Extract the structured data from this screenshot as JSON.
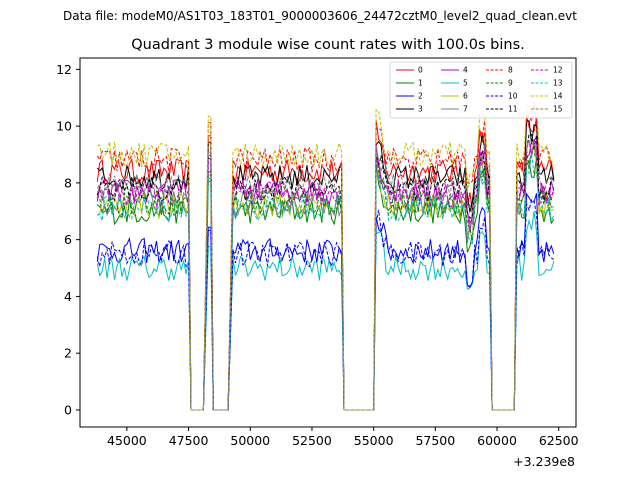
{
  "header": {
    "suptitle": "Data file: modeM0/AS1T03_183T01_9000003606_24472cztM0_level2_quad_clean.evt"
  },
  "chart_data": {
    "type": "line",
    "title": "Quadrant 3 module wise count rates with 100.0s bins.",
    "xlabel": "",
    "ylabel": "",
    "x_offset_label": "+3.239e8",
    "xlim": [
      43100,
      63200
    ],
    "ylim": [
      -0.6,
      12.4
    ],
    "x_ticks": [
      45000,
      47500,
      50000,
      52500,
      55000,
      57500,
      60000,
      62500
    ],
    "x_tick_labels": [
      "45000",
      "47500",
      "50000",
      "52500",
      "55000",
      "57500",
      "60000",
      "62500"
    ],
    "y_ticks": [
      0,
      2,
      4,
      6,
      8,
      10,
      12
    ],
    "y_tick_labels": [
      "0",
      "2",
      "4",
      "6",
      "8",
      "10",
      "12"
    ],
    "legend_position": "top-right",
    "segments": [
      {
        "x_start": 43800,
        "x_end": 47500,
        "level": "high"
      },
      {
        "x_start": 47600,
        "x_end": 48100,
        "level": "zero"
      },
      {
        "x_start": 48300,
        "x_end": 48400,
        "level": "spike"
      },
      {
        "x_start": 48500,
        "x_end": 49100,
        "level": "zero"
      },
      {
        "x_start": 49300,
        "x_end": 53700,
        "level": "high"
      },
      {
        "x_start": 53800,
        "x_end": 55000,
        "level": "zero"
      },
      {
        "x_start": 55100,
        "x_end": 59700,
        "level": "high"
      },
      {
        "x_start": 59800,
        "x_end": 60700,
        "level": "zero"
      },
      {
        "x_start": 60800,
        "x_end": 62300,
        "level": "high"
      }
    ],
    "series": [
      {
        "name": "0",
        "color": "#ff0000",
        "dash": "solid",
        "base": 8.4
      },
      {
        "name": "1",
        "color": "#008000",
        "dash": "solid",
        "base": 7.0
      },
      {
        "name": "2",
        "color": "#0000ff",
        "dash": "solid",
        "base": 5.6
      },
      {
        "name": "3",
        "color": "#000000",
        "dash": "solid",
        "base": 8.2
      },
      {
        "name": "4",
        "color": "#bf00bf",
        "dash": "solid",
        "base": 7.7
      },
      {
        "name": "5",
        "color": "#00bfbf",
        "dash": "solid",
        "base": 5.0
      },
      {
        "name": "6",
        "color": "#bfbf00",
        "dash": "solid",
        "base": 7.2
      },
      {
        "name": "7",
        "color": "#808080",
        "dash": "solid",
        "base": 7.3
      },
      {
        "name": "8",
        "color": "#ff0000",
        "dash": "dashed",
        "base": 8.8
      },
      {
        "name": "9",
        "color": "#008000",
        "dash": "dashed",
        "base": 7.3
      },
      {
        "name": "10",
        "color": "#0000ff",
        "dash": "dashed",
        "base": 5.5
      },
      {
        "name": "11",
        "color": "#000000",
        "dash": "dashed",
        "base": 7.8
      },
      {
        "name": "12",
        "color": "#bf00bf",
        "dash": "dashed",
        "base": 7.6
      },
      {
        "name": "13",
        "color": "#00bfbf",
        "dash": "dashed",
        "base": 7.1
      },
      {
        "name": "14",
        "color": "#bfbf00",
        "dash": "dashed",
        "base": 9.0
      },
      {
        "name": "15",
        "color": "#808080",
        "dash": "dashed",
        "base": 7.9
      }
    ]
  }
}
